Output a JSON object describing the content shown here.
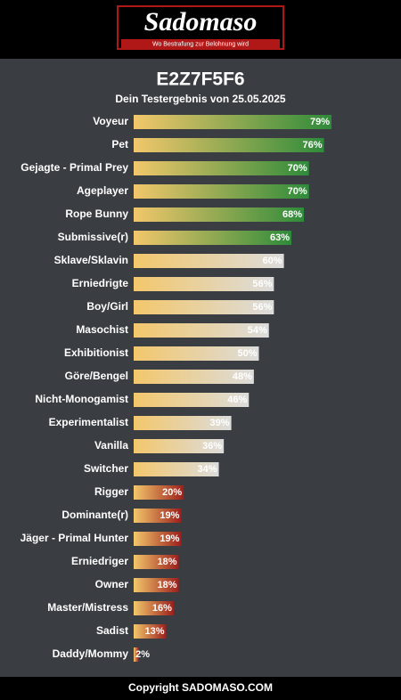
{
  "header": {
    "logo": "Sadomaso",
    "tagline": "Wo Bestrafung zur Belohnung wird"
  },
  "chart_data": {
    "type": "bar",
    "orientation": "horizontal",
    "title": "E2Z7F5F6",
    "subtitle": "Dein Testergebnis von 25.05.2025",
    "categories": [
      "Voyeur",
      "Pet",
      "Gejagte - Primal Prey",
      "Ageplayer",
      "Rope Bunny",
      "Submissive(r)",
      "Sklave/Sklavin",
      "Erniedrigte",
      "Boy/Girl",
      "Masochist",
      "Exhibitionist",
      "Göre/Bengel",
      "Nicht-Monogamist",
      "Experimentalist",
      "Vanilla",
      "Switcher",
      "Rigger",
      "Dominante(r)",
      "Jäger - Primal Hunter",
      "Erniedriger",
      "Owner",
      "Master/Mistress",
      "Sadist",
      "Daddy/Mommy"
    ],
    "values": [
      79,
      76,
      70,
      70,
      68,
      63,
      60,
      56,
      56,
      54,
      50,
      48,
      46,
      39,
      36,
      34,
      20,
      19,
      19,
      18,
      18,
      16,
      13,
      2
    ],
    "value_labels": [
      "79%",
      "76%",
      "70%",
      "70%",
      "68%",
      "63%",
      "60%",
      "56%",
      "56%",
      "54%",
      "50%",
      "48%",
      "46%",
      "39%",
      "36%",
      "34%",
      "20%",
      "19%",
      "19%",
      "18%",
      "18%",
      "16%",
      "13%",
      "2%"
    ],
    "gradient_start": "#f3c76b",
    "colors": [
      "#2e8b3a",
      "#2e8b3a",
      "#2e8b3a",
      "#2e8b3a",
      "#2e8b3a",
      "#2e8b3a",
      "#dcdcdc",
      "#dcdcdc",
      "#dcdcdc",
      "#dcdcdc",
      "#dcdcdc",
      "#dcdcdc",
      "#dcdcdc",
      "#dcdcdc",
      "#dcdcdc",
      "#dcdcdc",
      "#9c1f1c",
      "#9c1f1c",
      "#9c1f1c",
      "#9c1f1c",
      "#9c1f1c",
      "#9c1f1c",
      "#9c1f1c",
      "#9c1f1c"
    ],
    "xlim": [
      0,
      100
    ]
  },
  "footer": "Copyright SADOMASO.COM"
}
